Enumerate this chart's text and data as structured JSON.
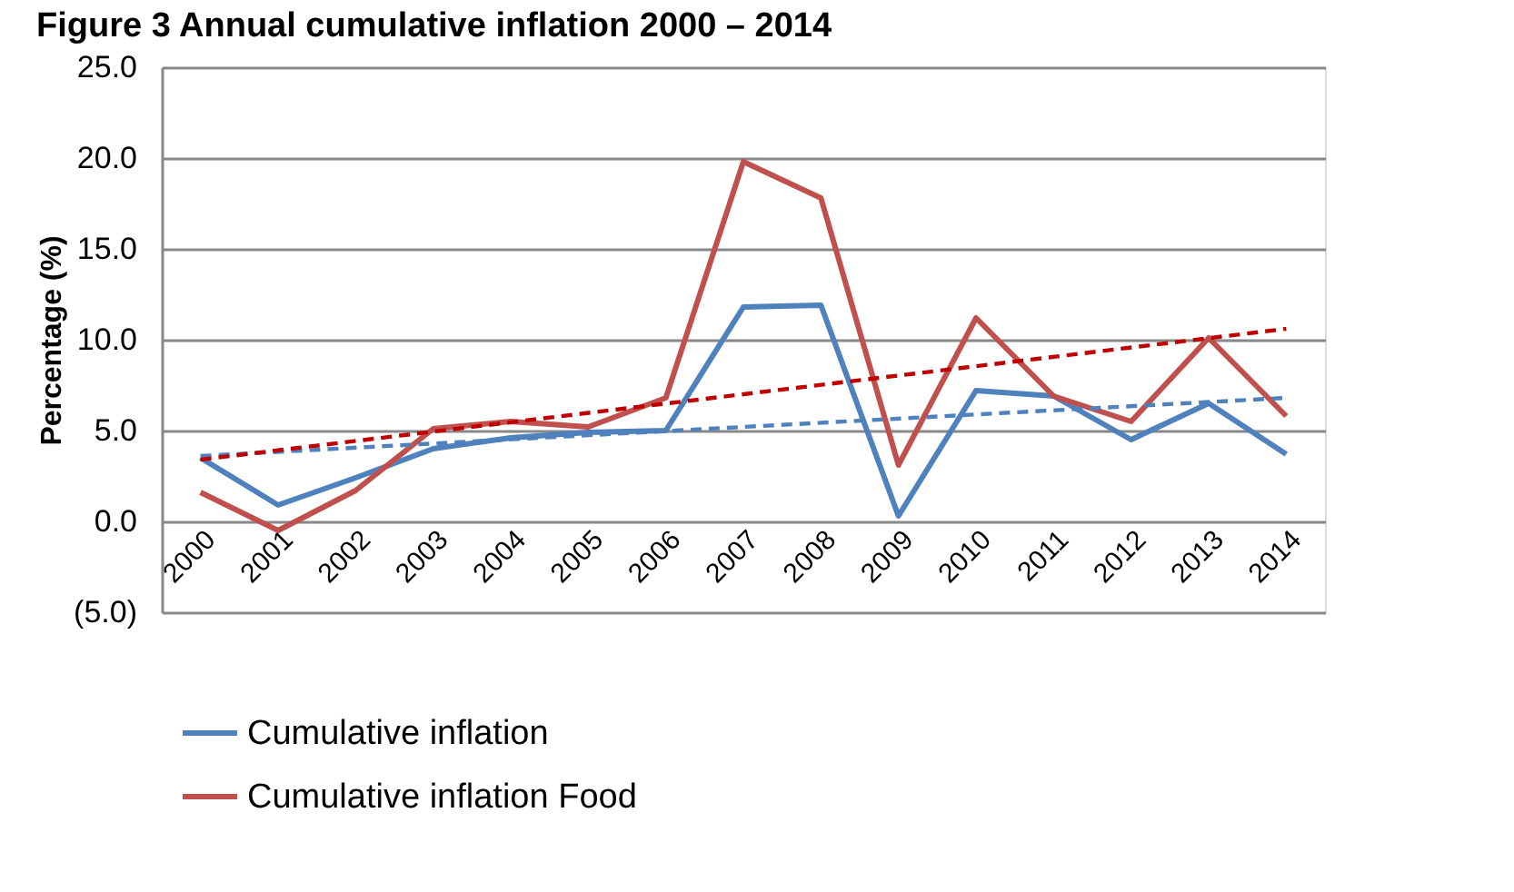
{
  "chart_data": {
    "type": "line",
    "title": "Figure 3 Annual cumulative inflation 2000 – 2014",
    "ylabel": "Percentage (%)",
    "categories": [
      "2000",
      "2001",
      "2002",
      "2003",
      "2004",
      "2005",
      "2006",
      "2007",
      "2008",
      "2009",
      "2010",
      "2011",
      "2012",
      "2013",
      "2014"
    ],
    "series": [
      {
        "name": "Cumulative inflation",
        "color": "#4f81bd",
        "values": [
          3.5,
          0.9,
          2.4,
          4.0,
          4.6,
          4.9,
          5.0,
          11.8,
          11.9,
          0.3,
          7.2,
          6.9,
          4.5,
          6.5,
          3.7
        ]
      },
      {
        "name": "Cumulative inflation Food",
        "color": "#c0504d",
        "values": [
          1.6,
          -0.5,
          1.7,
          5.1,
          5.5,
          5.2,
          6.8,
          19.8,
          17.8,
          3.1,
          11.2,
          6.9,
          5.5,
          10.1,
          5.8
        ]
      },
      {
        "type": "line",
        "line_style": "dashed",
        "color": "#4f81bd",
        "values": [
          3.6,
          null,
          null,
          null,
          null,
          null,
          null,
          null,
          null,
          null,
          null,
          null,
          null,
          null,
          6.8
        ]
      },
      {
        "type": "line",
        "line_style": "dashed",
        "color": "#c00000",
        "values": [
          3.4,
          null,
          null,
          null,
          null,
          null,
          null,
          null,
          null,
          null,
          null,
          null,
          null,
          null,
          10.6
        ]
      }
    ],
    "ylim": [
      -5,
      25
    ],
    "yticks": [
      {
        "value": -5,
        "label": "(5.0)"
      },
      {
        "value": 0,
        "label": "0.0"
      },
      {
        "value": 5,
        "label": "5.0"
      },
      {
        "value": 10,
        "label": "10.0"
      },
      {
        "value": 15,
        "label": "15.0"
      },
      {
        "value": 20,
        "label": "20.0"
      },
      {
        "value": 25,
        "label": "25.0"
      }
    ],
    "grid": "y",
    "legend": "bottom",
    "marker": "none",
    "line_style": "solid"
  }
}
